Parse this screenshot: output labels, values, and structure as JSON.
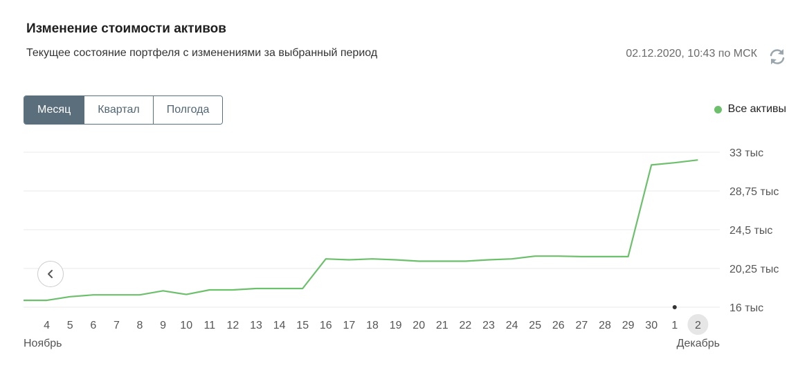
{
  "header": {
    "title": "Изменение стоимости активов",
    "subtitle": "Текущее состояние портфеля с изменениями за выбранный период",
    "timestamp": "02.12.2020, 10:43 по МСК"
  },
  "periods": [
    {
      "label": "Месяц",
      "active": true
    },
    {
      "label": "Квартал",
      "active": false
    },
    {
      "label": "Полгода",
      "active": false
    }
  ],
  "legend": {
    "label": "Все активы",
    "color": "#6cbf6b"
  },
  "icons": {
    "refresh": "refresh-icon",
    "prev": "chevron-left-icon"
  },
  "chart_data": {
    "type": "line",
    "x": [
      "3",
      "4",
      "5",
      "6",
      "7",
      "8",
      "9",
      "10",
      "11",
      "12",
      "13",
      "14",
      "15",
      "16",
      "17",
      "18",
      "19",
      "20",
      "21",
      "22",
      "23",
      "24",
      "25",
      "26",
      "27",
      "28",
      "29",
      "30",
      "1",
      "2"
    ],
    "x_tick_labels": [
      "4",
      "5",
      "6",
      "7",
      "8",
      "9",
      "10",
      "11",
      "12",
      "13",
      "14",
      "15",
      "16",
      "17",
      "18",
      "19",
      "20",
      "21",
      "22",
      "23",
      "24",
      "25",
      "26",
      "27",
      "28",
      "29",
      "30",
      "1",
      "2"
    ],
    "month_labels": {
      "start": "Ноябрь",
      "end": "Декабрь"
    },
    "highlighted_tick": "2",
    "series": [
      {
        "color": "#6cbf6b",
        "values": [
          16.75,
          16.75,
          17.15,
          17.35,
          17.35,
          17.35,
          17.8,
          17.4,
          17.9,
          17.9,
          18.05,
          18.05,
          18.05,
          21.3,
          21.2,
          21.3,
          21.2,
          21.05,
          21.05,
          21.05,
          21.2,
          21.3,
          21.6,
          21.6,
          21.55,
          21.55,
          21.55,
          31.6,
          31.85,
          32.15
        ]
      }
    ],
    "y_ticks": [
      16,
      20.25,
      24.5,
      28.75,
      33
    ],
    "y_tick_labels": [
      "16 тыс",
      "20,25 тыс",
      "24,5 тыс",
      "28,75 тыс",
      "33 тыс"
    ],
    "ylim": [
      16,
      33
    ],
    "grid": true
  }
}
